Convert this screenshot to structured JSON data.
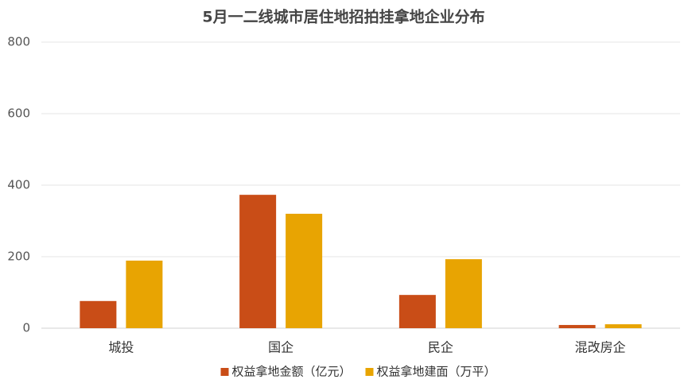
{
  "chart_data": {
    "type": "bar",
    "title": "5月一二线城市居住地招拍挂拿地企业分布",
    "categories": [
      "城投",
      "国企",
      "民企",
      "混改房企"
    ],
    "series": [
      {
        "name": "权益拿地金额（亿元）",
        "color": "#c94d17",
        "values": [
          76,
          373,
          93,
          9
        ]
      },
      {
        "name": "权益拿地建面（万平）",
        "color": "#e8a402",
        "values": [
          189,
          320,
          193,
          11
        ]
      }
    ],
    "ylim": [
      0,
      800
    ],
    "yticks": [
      0,
      200,
      400,
      600,
      800
    ],
    "grid": true,
    "legend": "bottom"
  }
}
